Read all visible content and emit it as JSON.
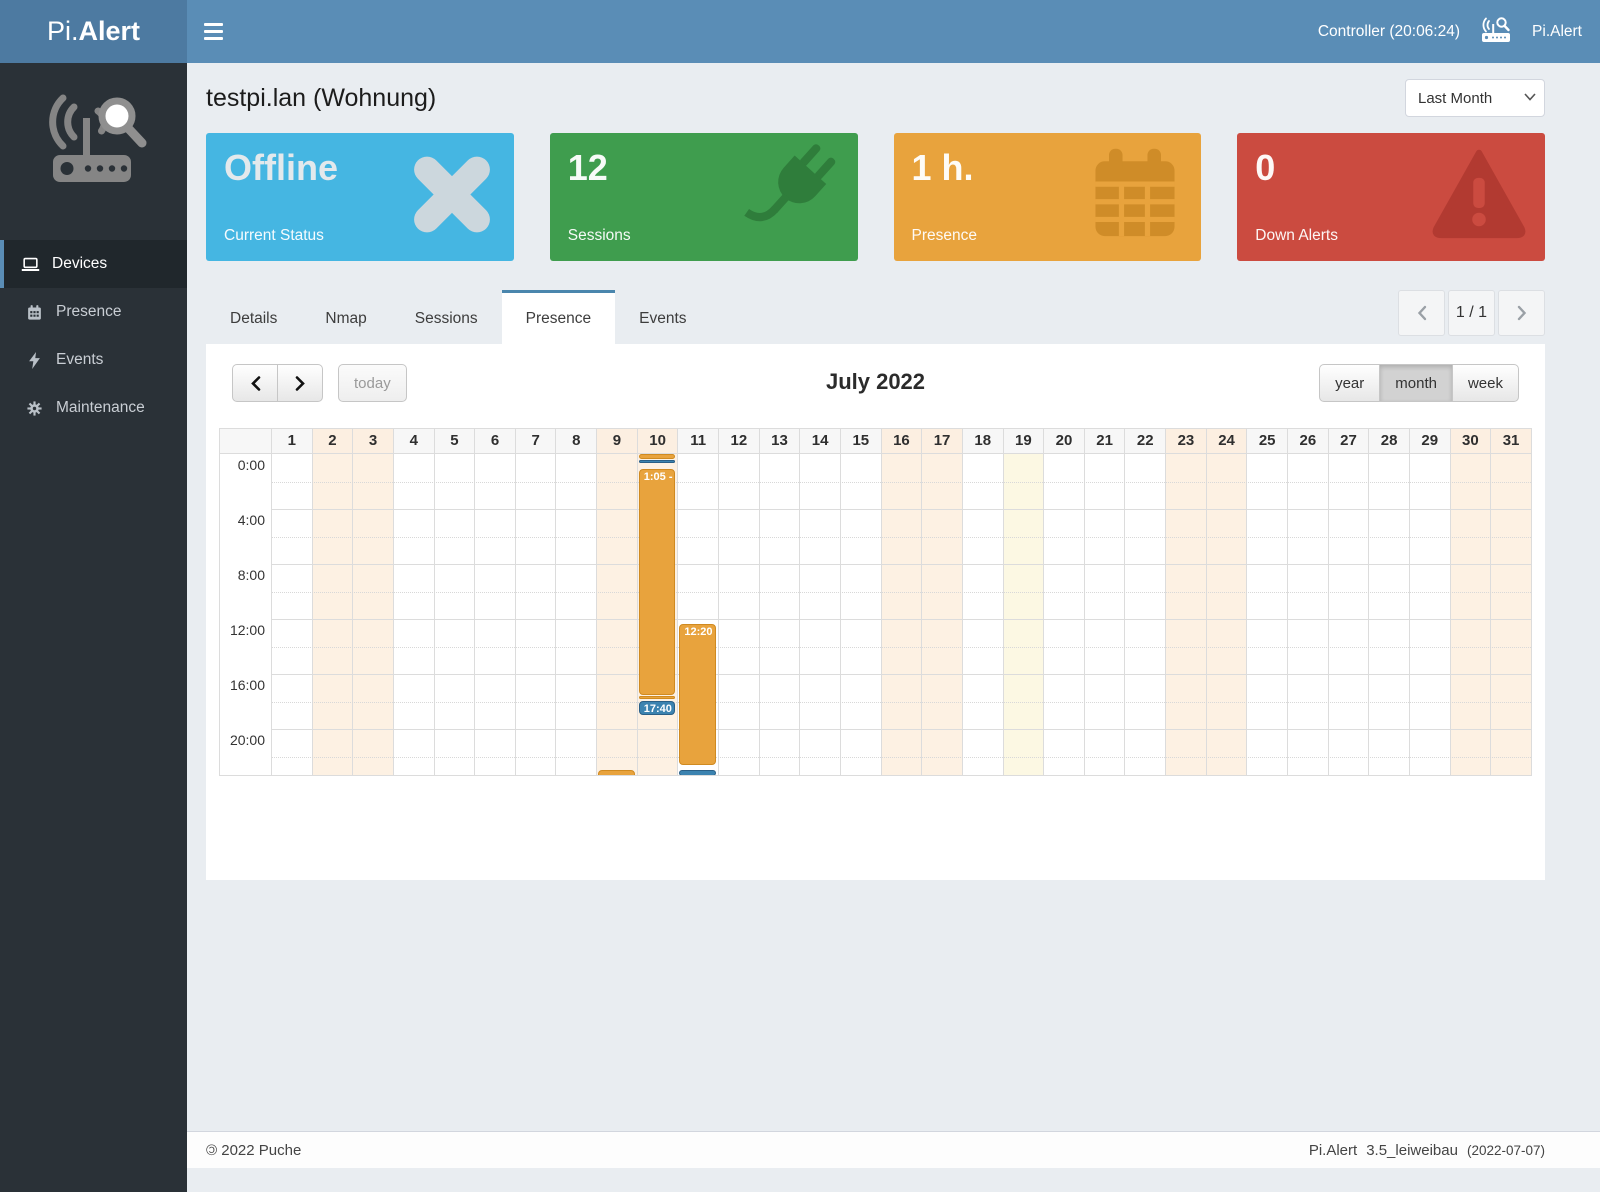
{
  "navbar": {
    "brand_prefix": "Pi.",
    "brand_suffix": "Alert",
    "controller_label": "Controller (20:06:24)",
    "app_label": "Pi.Alert"
  },
  "sidebar": {
    "items": [
      {
        "label": "Devices",
        "icon": "laptop-icon",
        "active": true
      },
      {
        "label": "Presence",
        "icon": "calendar-icon",
        "active": false
      },
      {
        "label": "Events",
        "icon": "bolt-icon",
        "active": false
      },
      {
        "label": "Maintenance",
        "icon": "gear-icon",
        "active": false
      }
    ]
  },
  "page": {
    "title": "testpi.lan (Wohnung)",
    "period_selected": "Last Month"
  },
  "cards": [
    {
      "value": "Offline",
      "label": "Current Status",
      "color": "#45b6e2",
      "icon": "x-icon"
    },
    {
      "value": "12",
      "label": "Sessions",
      "color": "#3f9d4e",
      "icon": "plug-icon"
    },
    {
      "value": "1 h.",
      "label": "Presence",
      "color": "#e8a33d",
      "icon": "calendar-icon"
    },
    {
      "value": "0",
      "label": "Down Alerts",
      "color": "#cb4b40",
      "icon": "warning-icon"
    }
  ],
  "tabs": {
    "items": [
      "Details",
      "Nmap",
      "Sessions",
      "Presence",
      "Events"
    ],
    "active": "Presence"
  },
  "pagination": {
    "label": "1 / 1"
  },
  "calendar": {
    "title": "July 2022",
    "today_button": "today",
    "view_buttons": [
      "year",
      "month",
      "week"
    ],
    "active_view": "month",
    "days": [
      1,
      2,
      3,
      4,
      5,
      6,
      7,
      8,
      9,
      10,
      11,
      12,
      13,
      14,
      15,
      16,
      17,
      18,
      19,
      20,
      21,
      22,
      23,
      24,
      25,
      26,
      27,
      28,
      29,
      30,
      31
    ],
    "weekend_days": [
      2,
      3,
      9,
      10,
      16,
      17,
      23,
      24,
      30,
      31
    ],
    "today_day": 19,
    "time_labels": [
      "0:00",
      "4:00",
      "8:00",
      "12:00",
      "16:00",
      "20:00"
    ],
    "events": [
      {
        "day": 9,
        "start": 22.95,
        "end": 24.3,
        "type": "presence",
        "label": ""
      },
      {
        "day": 10,
        "start": 0.0,
        "end": 0.35,
        "type": "presence",
        "label": ""
      },
      {
        "day": 10,
        "start": 0.42,
        "end": 0.68,
        "type": "down",
        "label": ""
      },
      {
        "day": 10,
        "start": 1.08,
        "end": 17.5,
        "type": "presence",
        "label": "1:05 -"
      },
      {
        "day": 10,
        "start": 17.6,
        "end": 17.85,
        "type": "presence",
        "label": ""
      },
      {
        "day": 10,
        "start": 17.95,
        "end": 19.0,
        "type": "down",
        "label": "17:40"
      },
      {
        "day": 11,
        "start": 12.33,
        "end": 22.6,
        "type": "presence",
        "label": "12:20 -"
      },
      {
        "day": 11,
        "start": 22.95,
        "end": 23.45,
        "type": "down",
        "label": ""
      }
    ],
    "colors": {
      "presence_event": "#e8a33d",
      "presence_border": "#d08a20",
      "down_event": "#3c83b0",
      "down_border": "#2a5f86",
      "weekend_bg": "#fdf1e3",
      "today_bg": "#fcf8e3"
    }
  },
  "footer": {
    "copyleft": "©",
    "left": "2022 Puche",
    "app": "Pi.Alert",
    "version": "3.5_leiweibau",
    "date": "(2022-07-07)"
  }
}
